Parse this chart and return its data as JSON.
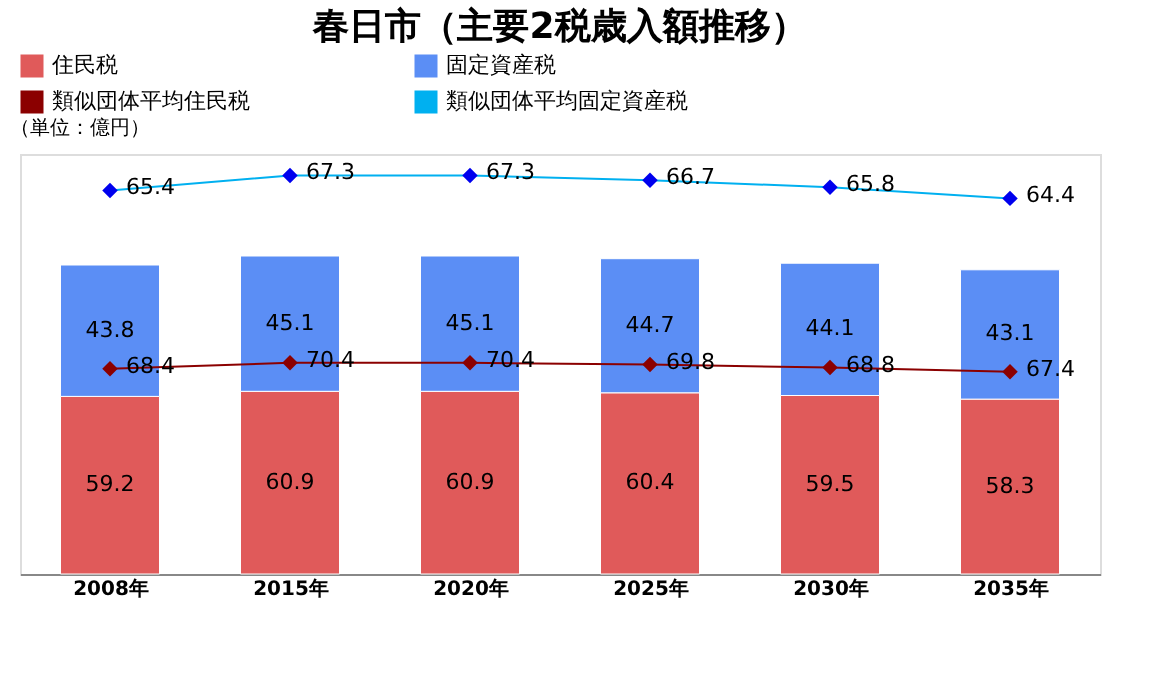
{
  "chart_data": {
    "type": "bar",
    "title": "春日市（主要2税歳入額推移）",
    "annotations": [
      "（単位：億円）"
    ],
    "categories": [
      "2008年",
      "2015年",
      "2020年",
      "2025年",
      "2030年",
      "2035年"
    ],
    "stacked": true,
    "data_labels": true,
    "legend": "top",
    "grid": false,
    "ylim": [
      0,
      140
    ],
    "y2lim": [
      17,
      70
    ],
    "tick_labels": "x",
    "series": [
      {
        "name": "住民税",
        "color": "#e05a5a",
        "values": [
          59.2,
          60.9,
          60.9,
          60.4,
          59.5,
          58.3
        ]
      },
      {
        "name": "固定資産税",
        "color": "#5b8ef5",
        "values": [
          43.8,
          45.1,
          45.1,
          44.7,
          44.1,
          43.1
        ]
      },
      {
        "name": "類似団体平均住民税",
        "type": "line",
        "color": "#8b0000",
        "marker": "diamond",
        "values": [
          68.4,
          70.4,
          70.4,
          69.8,
          68.8,
          67.4
        ]
      },
      {
        "name": "類似団体平均固定資産税",
        "type": "line",
        "axis": "y2",
        "color": "#00b0f0",
        "marker": "diamond",
        "values": [
          65.4,
          67.3,
          67.3,
          66.7,
          65.8,
          64.4
        ]
      }
    ]
  }
}
